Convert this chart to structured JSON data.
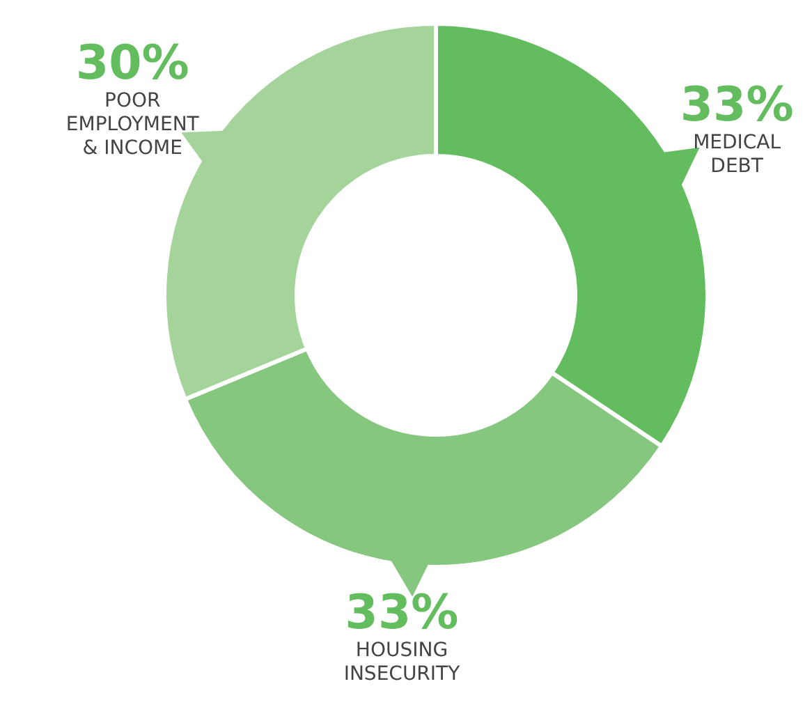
{
  "chart_data": {
    "type": "donut",
    "categories": [
      "MEDICAL DEBT",
      "HOUSING INSECURITY",
      "POOR EMPLOYMENT & INCOME"
    ],
    "values": [
      33,
      33,
      30
    ],
    "value_labels": [
      "33%",
      "33%",
      "30%"
    ],
    "colors": [
      "#63bc5e",
      "#86c77f",
      "#a5d49b"
    ]
  }
}
